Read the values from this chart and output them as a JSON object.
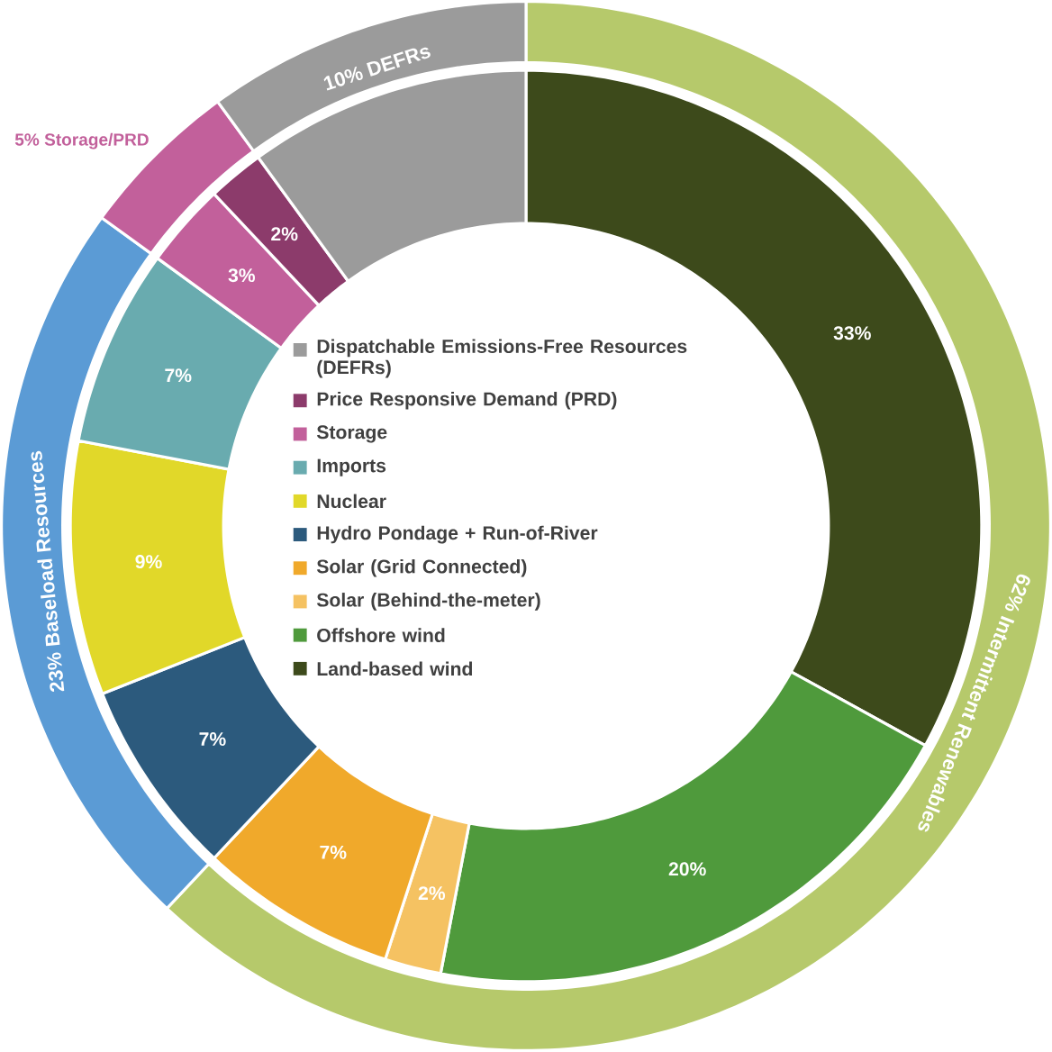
{
  "chart_data": [
    {
      "type": "donut",
      "categories": [
        "Land-based wind",
        "Offshore wind",
        "Solar (Behind-the-meter)",
        "Solar (Grid Connected)",
        "Hydro Pondage + Run-of-River",
        "Nuclear",
        "Imports",
        "Storage",
        "Price Responsive Demand (PRD)",
        "Dispatchable Emissions-Free Resources (DEFRs)"
      ],
      "values": [
        33,
        20,
        2,
        7,
        7,
        9,
        7,
        3,
        2,
        10
      ],
      "colors": [
        "#3d4a1b",
        "#4f9a3c",
        "#f5c262",
        "#f0a92b",
        "#2c5a7d",
        "#e1d829",
        "#69abaf",
        "#c2609b",
        "#8c3b6b",
        "#9b9b9b"
      ],
      "value_labels": [
        "33%",
        "20%",
        "2%",
        "7%",
        "7%",
        "9%",
        "7%",
        "3%",
        "2%",
        null
      ],
      "legend": "center"
    },
    {
      "type": "donut",
      "categories": [
        "Intermittent Renewables",
        "Baseload Resources",
        "Storage/PRD",
        "DEFRs"
      ],
      "values": [
        62,
        23,
        5,
        10
      ],
      "colors": [
        "#b6c96b",
        "#5b9bd5",
        "#c2609b",
        "#9b9b9b"
      ],
      "value_labels": [
        "62%",
        "23%",
        "5%",
        "10%"
      ]
    }
  ]
}
